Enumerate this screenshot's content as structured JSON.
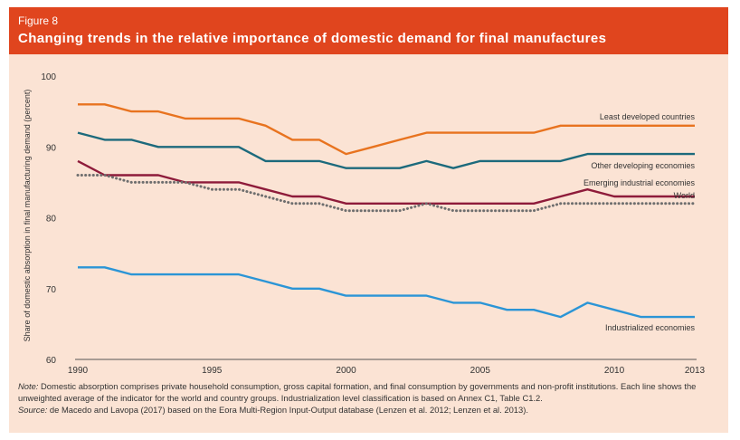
{
  "header": {
    "figure_number": "Figure 8",
    "title": "Changing trends in the relative importance of domestic demand for final manufactures"
  },
  "chart_data": {
    "type": "line",
    "title": "Changing trends in the relative importance of domestic demand for final manufactures",
    "xlabel": "",
    "ylabel": "Share of domestic absorption in final manufacturing demand (percent)",
    "xlim": [
      1990,
      2013
    ],
    "ylim": [
      60,
      100
    ],
    "x_ticks": [
      "1990",
      "1995",
      "2000",
      "2005",
      "2010",
      "2013"
    ],
    "y_ticks": [
      "100",
      "90",
      "80",
      "70",
      "60"
    ],
    "grid": false,
    "legend": "inline labels at right end of lines",
    "x": [
      1990,
      1991,
      1992,
      1993,
      1994,
      1995,
      1996,
      1997,
      1998,
      1999,
      2000,
      2001,
      2002,
      2003,
      2004,
      2005,
      2006,
      2007,
      2008,
      2009,
      2010,
      2011,
      2012,
      2013
    ],
    "series": [
      {
        "name": "Least developed countries",
        "color": "#e8731f",
        "style": "solid",
        "values": [
          96,
          96,
          95,
          95,
          94,
          94,
          94,
          93,
          91,
          91,
          89,
          90,
          91,
          92,
          92,
          92,
          92,
          92,
          93,
          93,
          93,
          93,
          93,
          93
        ]
      },
      {
        "name": "Other developing economies",
        "color": "#1c6a7c",
        "style": "solid",
        "values": [
          92,
          91,
          91,
          90,
          90,
          90,
          90,
          88,
          88,
          88,
          87,
          87,
          87,
          88,
          87,
          88,
          88,
          88,
          88,
          89,
          89,
          89,
          89,
          89
        ]
      },
      {
        "name": "Emerging industrial economies",
        "color": "#8e1b3a",
        "style": "solid",
        "values": [
          88,
          86,
          86,
          86,
          85,
          85,
          85,
          84,
          83,
          83,
          82,
          82,
          82,
          82,
          82,
          82,
          82,
          82,
          83,
          84,
          83,
          83,
          83,
          83
        ]
      },
      {
        "name": "World",
        "color": "#6e6e6e",
        "style": "dotted",
        "values": [
          86,
          86,
          85,
          85,
          85,
          84,
          84,
          83,
          82,
          82,
          81,
          81,
          81,
          82,
          81,
          81,
          81,
          81,
          82,
          82,
          82,
          82,
          82,
          82
        ]
      },
      {
        "name": "Industrialized economies",
        "color": "#2b95d6",
        "style": "solid",
        "values": [
          73,
          73,
          72,
          72,
          72,
          72,
          72,
          71,
          70,
          70,
          69,
          69,
          69,
          69,
          68,
          68,
          67,
          67,
          66,
          68,
          67,
          66,
          66,
          66
        ]
      }
    ]
  },
  "notes": {
    "note_label": "Note:",
    "note_text": "Domestic absorption comprises private household consumption, gross capital formation, and final consumption by governments and non-profit institutions. Each line shows the unweighted average of the indicator for the world and country groups. Industrialization level classification is based on Annex C1, Table C1.2.",
    "source_label": "Source:",
    "source_text": "de Macedo and Lavopa (2017) based on the Eora Multi-Region Input-Output database (Lenzen et al. 2012; Lenzen et al. 2013)."
  }
}
